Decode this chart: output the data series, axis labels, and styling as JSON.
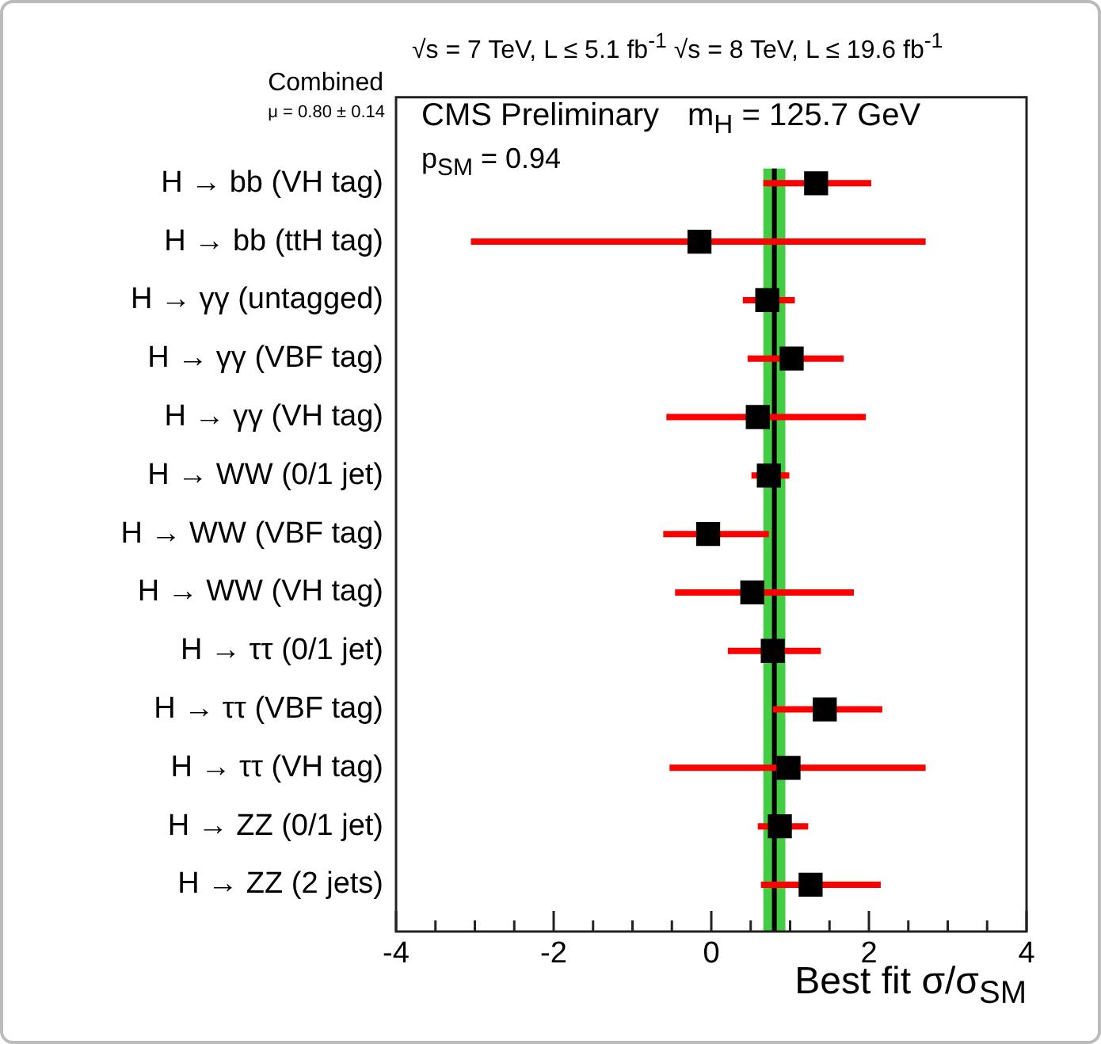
{
  "chart_data": {
    "type": "scatter",
    "orientation": "horizontal",
    "title": "√s = 7 TeV, L ≤ 5.1 fb$^{-1}$  √s = 8 TeV, L ≤ 19.6 fb$^{-1}$",
    "xlabel": "Best fit σ/σ$_{SM}$",
    "categories": [
      "H → bb (VH tag)",
      "H → bb (ttH tag)",
      "H → γγ (untagged)",
      "H → γγ (VBF tag)",
      "H → γγ (VH tag)",
      "H → WW (0/1 jet)",
      "H → WW (VBF tag)",
      "H → WW (VH tag)",
      "H → ττ (0/1 jet)",
      "H → ττ (VBF tag)",
      "H → ττ (VH tag)",
      "H → ZZ (0/1 jet)",
      "H → ZZ (2 jets)"
    ],
    "series": [
      {
        "color": "#000000",
        "values": [
          1.33,
          -0.15,
          0.71,
          1.02,
          0.59,
          0.73,
          -0.04,
          0.52,
          0.78,
          1.44,
          0.98,
          0.87,
          1.26
        ],
        "errors": [
          [
            0.66,
            2.03
          ],
          [
            -3.05,
            2.72
          ],
          [
            0.4,
            1.06
          ],
          [
            0.46,
            1.68
          ],
          [
            -0.57,
            1.96
          ],
          [
            0.51,
            0.99
          ],
          [
            -0.61,
            0.73
          ],
          [
            -0.46,
            1.81
          ],
          [
            0.21,
            1.39
          ],
          [
            0.78,
            2.17
          ],
          [
            -0.53,
            2.72
          ],
          [
            0.59,
            1.23
          ],
          [
            0.63,
            2.15
          ]
        ]
      }
    ],
    "marker": "square",
    "legend": false,
    "grid": false,
    "xlim": [
      -4,
      4
    ],
    "xticks": [
      -4,
      {
        "value": -3.5,
        "label": null
      },
      {
        "value": -3,
        "label": null
      },
      {
        "value": -2.5,
        "label": null
      },
      -2,
      {
        "value": -1.5,
        "label": null
      },
      {
        "value": -1,
        "label": null
      },
      {
        "value": -0.5,
        "label": null
      },
      0,
      {
        "value": 0.5,
        "label": null
      },
      {
        "value": 1,
        "label": null
      },
      {
        "value": 1.5,
        "label": null
      },
      2,
      {
        "value": 2.5,
        "label": null
      },
      {
        "value": 3,
        "label": null
      },
      {
        "value": 3.5,
        "label": null
      },
      4
    ],
    "ref_lines": [
      {
        "axis": "x",
        "value": 0.8,
        "color": "#000000"
      }
    ],
    "bands": [
      {
        "axis": "x",
        "from": 0.66,
        "to": 0.94,
        "color": "#44cc44"
      }
    ],
    "annotations": [
      "Combined",
      "μ = 0.80 ± 0.14",
      "CMS Preliminary",
      "m$_{H}$ = 125.7 GeV",
      "p$_{SM}$ = 0.94"
    ]
  }
}
